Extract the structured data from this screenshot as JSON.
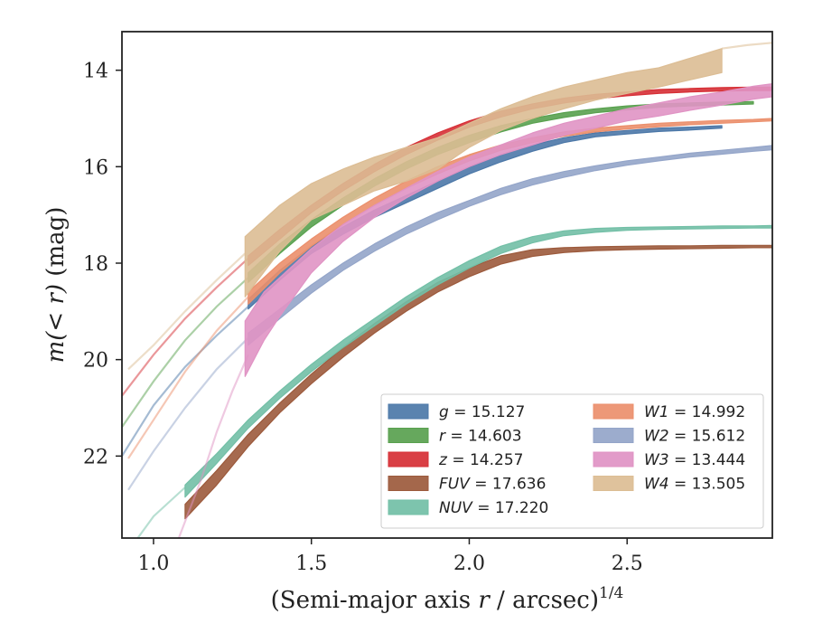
{
  "chart_data": {
    "type": "line",
    "xlabel_main": "(Semi-major axis ",
    "xlabel_var": "r",
    "xlabel_tail": " / arcsec)",
    "xlabel_exp": "1/4",
    "ylabel_main": "m",
    "ylabel_arg": "(< r)",
    "ylabel_unit": " (mag)",
    "xlim": [
      0.9,
      2.96
    ],
    "ylim": [
      23.7,
      13.2
    ],
    "y_inverted": true,
    "grid": false,
    "legend_position": "lower-right",
    "xticks": [
      {
        "value": 1.0,
        "label": "1.0"
      },
      {
        "value": 1.5,
        "label": "1.5"
      },
      {
        "value": 2.0,
        "label": "2.0"
      },
      {
        "value": 2.5,
        "label": "2.5"
      }
    ],
    "yticks": [
      {
        "value": 14,
        "label": "14"
      },
      {
        "value": 16,
        "label": "16"
      },
      {
        "value": 18,
        "label": "18"
      },
      {
        "value": 20,
        "label": "20"
      },
      {
        "value": 22,
        "label": "22"
      }
    ],
    "series": [
      {
        "band": "g",
        "name": "g = 15.127",
        "color": "#4c78a8",
        "ext_x": [
          0.9,
          1.0,
          1.1,
          1.2,
          1.3
        ],
        "ext_y": [
          22.0,
          20.95,
          20.15,
          19.5,
          18.9
        ],
        "x": [
          1.3,
          1.4,
          1.5,
          1.6,
          1.7,
          1.8,
          1.9,
          2.0,
          2.1,
          2.2,
          2.3,
          2.4,
          2.5,
          2.6,
          2.7,
          2.8
        ],
        "lo": [
          18.75,
          18.15,
          17.65,
          17.25,
          16.9,
          16.6,
          16.3,
          16.0,
          15.75,
          15.55,
          15.4,
          15.3,
          15.25,
          15.2,
          15.18,
          15.15
        ],
        "hi": [
          18.95,
          18.35,
          17.8,
          17.4,
          17.05,
          16.75,
          16.45,
          16.15,
          15.9,
          15.68,
          15.5,
          15.38,
          15.32,
          15.27,
          15.24,
          15.2
        ]
      },
      {
        "band": "r",
        "name": "r = 14.603",
        "color": "#59a14f",
        "ext_x": [
          0.9,
          1.0,
          1.1,
          1.2,
          1.3
        ],
        "ext_y": [
          21.4,
          20.45,
          19.6,
          18.9,
          18.3
        ],
        "x": [
          1.3,
          1.4,
          1.5,
          1.6,
          1.7,
          1.8,
          1.9,
          2.0,
          2.1,
          2.2,
          2.3,
          2.4,
          2.5,
          2.6,
          2.7,
          2.8,
          2.9
        ],
        "lo": [
          18.2,
          17.6,
          17.1,
          16.65,
          16.25,
          15.9,
          15.6,
          15.35,
          15.15,
          15.0,
          14.88,
          14.8,
          14.74,
          14.7,
          14.68,
          14.66,
          14.65
        ],
        "hi": [
          18.4,
          17.8,
          17.25,
          16.8,
          16.4,
          16.05,
          15.75,
          15.5,
          15.28,
          15.1,
          14.98,
          14.88,
          14.82,
          14.77,
          14.74,
          14.72,
          14.7
        ]
      },
      {
        "band": "z",
        "name": "z = 14.257",
        "color": "#d62f35",
        "ext_x": [
          0.9,
          1.0,
          1.1,
          1.2,
          1.3
        ],
        "ext_y": [
          20.75,
          19.9,
          19.15,
          18.5,
          17.9
        ],
        "x": [
          1.3,
          1.4,
          1.5,
          1.6,
          1.7,
          1.8,
          1.9,
          2.0,
          2.1,
          2.2,
          2.3,
          2.4,
          2.5,
          2.6,
          2.7,
          2.8,
          2.9,
          2.96
        ],
        "lo": [
          17.85,
          17.3,
          16.8,
          16.35,
          15.95,
          15.6,
          15.3,
          15.05,
          14.85,
          14.7,
          14.58,
          14.5,
          14.45,
          14.4,
          14.38,
          14.36,
          14.35,
          14.35
        ],
        "hi": [
          18.05,
          17.5,
          16.95,
          16.5,
          16.1,
          15.75,
          15.45,
          15.18,
          14.97,
          14.8,
          14.68,
          14.59,
          14.53,
          14.48,
          14.45,
          14.43,
          14.42,
          14.42
        ]
      },
      {
        "band": "FUV",
        "name": "FUV = 17.636",
        "color": "#9c5a3c",
        "ext_x": [],
        "ext_y": [],
        "x": [
          1.1,
          1.2,
          1.3,
          1.4,
          1.5,
          1.6,
          1.7,
          1.8,
          1.9,
          2.0,
          2.1,
          2.2,
          2.3,
          2.4,
          2.5,
          2.6,
          2.7,
          2.8,
          2.9,
          2.96
        ],
        "lo": [
          23.0,
          22.3,
          21.55,
          20.9,
          20.3,
          19.75,
          19.25,
          18.8,
          18.4,
          18.1,
          17.85,
          17.72,
          17.68,
          17.66,
          17.65,
          17.64,
          17.64,
          17.63,
          17.63,
          17.63
        ],
        "hi": [
          23.3,
          22.6,
          21.8,
          21.1,
          20.5,
          19.95,
          19.45,
          19.0,
          18.6,
          18.28,
          18.02,
          17.86,
          17.78,
          17.74,
          17.72,
          17.71,
          17.7,
          17.69,
          17.68,
          17.68
        ]
      },
      {
        "band": "NUV",
        "name": "NUV = 17.220",
        "color": "#72bfa6",
        "ext_x": [
          0.95,
          1.0,
          1.05,
          1.1
        ],
        "ext_y": [
          23.7,
          23.25,
          22.95,
          22.65
        ],
        "x": [
          1.1,
          1.2,
          1.3,
          1.4,
          1.5,
          1.6,
          1.7,
          1.8,
          1.9,
          2.0,
          2.1,
          2.2,
          2.3,
          2.4,
          2.5,
          2.6,
          2.7,
          2.8,
          2.9,
          2.96
        ],
        "lo": [
          22.6,
          21.95,
          21.25,
          20.65,
          20.1,
          19.6,
          19.15,
          18.7,
          18.3,
          17.95,
          17.65,
          17.45,
          17.33,
          17.28,
          17.26,
          17.25,
          17.24,
          17.23,
          17.23,
          17.22
        ],
        "hi": [
          22.85,
          22.15,
          21.42,
          20.8,
          20.25,
          19.75,
          19.3,
          18.85,
          18.45,
          18.1,
          17.8,
          17.58,
          17.43,
          17.36,
          17.32,
          17.3,
          17.29,
          17.28,
          17.27,
          17.27
        ]
      },
      {
        "band": "W1",
        "name": "W1 = 14.992",
        "color": "#eb8f6c",
        "ext_x": [
          0.92,
          1.0,
          1.1,
          1.2,
          1.3
        ],
        "ext_y": [
          22.05,
          21.25,
          20.25,
          19.4,
          18.7
        ],
        "x": [
          1.3,
          1.4,
          1.5,
          1.6,
          1.7,
          1.8,
          1.9,
          2.0,
          2.1,
          2.2,
          2.3,
          2.4,
          2.5,
          2.6,
          2.7,
          2.8,
          2.9,
          2.96
        ],
        "lo": [
          18.6,
          18.0,
          17.5,
          17.05,
          16.65,
          16.3,
          16.0,
          15.75,
          15.55,
          15.4,
          15.28,
          15.2,
          15.15,
          15.1,
          15.07,
          15.04,
          15.02,
          15.0
        ],
        "hi": [
          18.85,
          18.2,
          17.65,
          17.2,
          16.8,
          16.45,
          16.15,
          15.88,
          15.66,
          15.5,
          15.37,
          15.28,
          15.22,
          15.17,
          15.13,
          15.1,
          15.07,
          15.05
        ]
      },
      {
        "band": "W2",
        "name": "W2 = 15.612",
        "color": "#94a5c9",
        "ext_x": [
          0.92,
          1.0,
          1.1,
          1.2,
          1.3
        ],
        "ext_y": [
          22.7,
          21.9,
          21.0,
          20.2,
          19.55
        ],
        "x": [
          1.3,
          1.4,
          1.5,
          1.6,
          1.7,
          1.8,
          1.9,
          2.0,
          2.1,
          2.2,
          2.3,
          2.4,
          2.5,
          2.6,
          2.7,
          2.8,
          2.9,
          2.96
        ],
        "lo": [
          19.45,
          18.95,
          18.45,
          18.0,
          17.6,
          17.25,
          16.95,
          16.7,
          16.45,
          16.25,
          16.1,
          15.98,
          15.88,
          15.8,
          15.72,
          15.66,
          15.6,
          15.56
        ],
        "hi": [
          19.7,
          19.15,
          18.62,
          18.15,
          17.75,
          17.4,
          17.1,
          16.82,
          16.58,
          16.38,
          16.22,
          16.08,
          15.97,
          15.88,
          15.8,
          15.74,
          15.68,
          15.65
        ]
      },
      {
        "band": "W3",
        "name": "W3 = 13.444",
        "color": "#e093c4",
        "ext_x": [
          1.08,
          1.15,
          1.2,
          1.25,
          1.3
        ],
        "ext_y": [
          23.7,
          22.5,
          21.5,
          20.65,
          19.9
        ],
        "x": [
          1.29,
          1.35,
          1.4,
          1.5,
          1.6,
          1.7,
          1.8,
          1.9,
          2.0,
          2.1,
          2.2,
          2.3,
          2.4,
          2.5,
          2.6,
          2.7,
          2.8,
          2.9,
          2.96
        ],
        "lo": [
          19.2,
          18.6,
          18.3,
          17.7,
          17.2,
          16.8,
          16.45,
          16.1,
          15.8,
          15.55,
          15.3,
          15.1,
          14.95,
          14.8,
          14.68,
          14.55,
          14.45,
          14.33,
          14.28
        ],
        "hi": [
          20.35,
          19.6,
          19.1,
          18.2,
          17.55,
          17.05,
          16.65,
          16.3,
          16.0,
          15.75,
          15.55,
          15.35,
          15.2,
          15.05,
          14.95,
          14.83,
          14.72,
          14.6,
          14.55
        ]
      },
      {
        "band": "W4",
        "name": "W4 = 13.505",
        "color": "#dcbd94",
        "ext_x": [
          0.92,
          1.0,
          1.1,
          1.2,
          1.29
        ],
        "ext_y": [
          20.2,
          19.7,
          19.0,
          18.35,
          17.8
        ],
        "ext2_x": [
          2.8,
          2.88,
          2.96
        ],
        "ext2_y": [
          13.55,
          13.48,
          13.43
        ],
        "x": [
          1.29,
          1.4,
          1.5,
          1.6,
          1.7,
          1.8,
          1.9,
          2.0,
          2.1,
          2.2,
          2.3,
          2.4,
          2.5,
          2.6,
          2.7,
          2.8
        ],
        "lo": [
          17.45,
          16.8,
          16.35,
          16.05,
          15.8,
          15.6,
          15.4,
          15.1,
          14.8,
          14.55,
          14.35,
          14.2,
          14.05,
          13.95,
          13.75,
          13.55
        ],
        "hi": [
          18.7,
          17.75,
          17.1,
          16.8,
          16.5,
          16.3,
          16.05,
          15.6,
          15.25,
          15.0,
          14.8,
          14.62,
          14.48,
          14.35,
          14.2,
          14.05
        ]
      }
    ],
    "legend": {
      "left": [
        {
          "var": "g",
          "value": " = 15.127",
          "color": "#4c78a8"
        },
        {
          "var": "r",
          "value": " = 14.603",
          "color": "#59a14f"
        },
        {
          "var": "z",
          "value": " = 14.257",
          "color": "#d62f35"
        },
        {
          "var": "FUV",
          "value": " = 17.636",
          "color": "#9c5a3c"
        },
        {
          "var": "NUV",
          "value": " = 17.220",
          "color": "#72bfa6"
        }
      ],
      "right": [
        {
          "var": "W1",
          "value": " = 14.992",
          "color": "#eb8f6c"
        },
        {
          "var": "W2",
          "value": " = 15.612",
          "color": "#94a5c9"
        },
        {
          "var": "W3",
          "value": " = 13.444",
          "color": "#e093c4"
        },
        {
          "var": "W4",
          "value": " = 13.505",
          "color": "#dcbd94"
        }
      ]
    }
  }
}
